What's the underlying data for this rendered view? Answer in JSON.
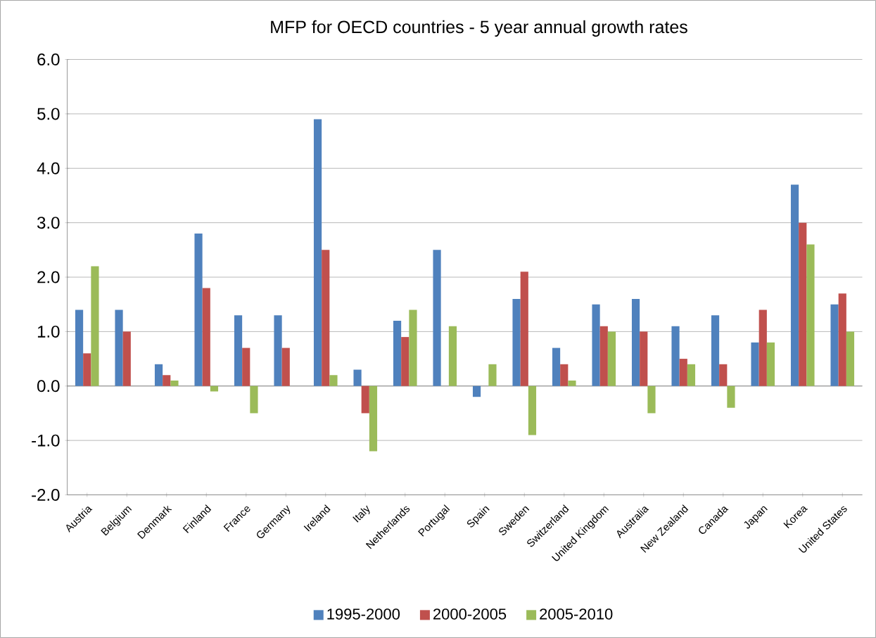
{
  "chart_data": {
    "type": "bar",
    "title": "MFP for OECD countries - 5 year annual growth rates",
    "categories": [
      "Austria",
      "Belgium",
      "Denmark",
      "Finland",
      "France",
      "Germany",
      "Ireland",
      "Italy",
      "Netherlands",
      "Portugal",
      "Spain",
      "Sweden",
      "Switzerland",
      "United Kingdom",
      "Australia",
      "New Zealand",
      "Canada",
      "Japan",
      "Korea",
      "United States"
    ],
    "series": [
      {
        "name": "1995-2000",
        "color": "#4f81bd",
        "values": [
          1.4,
          1.4,
          0.4,
          2.8,
          1.3,
          1.3,
          4.9,
          0.3,
          1.2,
          2.5,
          -0.2,
          1.6,
          0.7,
          1.5,
          1.6,
          1.1,
          1.3,
          0.8,
          3.7,
          1.5
        ]
      },
      {
        "name": "2000-2005",
        "color": "#c0504d",
        "values": [
          0.6,
          1.0,
          0.2,
          1.8,
          0.7,
          0.7,
          2.5,
          -0.5,
          0.9,
          null,
          null,
          2.1,
          0.4,
          1.1,
          1.0,
          0.5,
          0.4,
          1.4,
          3.0,
          1.7
        ]
      },
      {
        "name": "2005-2010",
        "color": "#9bbb59",
        "values": [
          2.2,
          null,
          0.1,
          -0.1,
          -0.5,
          null,
          0.2,
          -1.2,
          1.4,
          1.1,
          0.4,
          -0.9,
          0.1,
          1.0,
          -0.5,
          0.4,
          -0.4,
          0.8,
          2.6,
          1.0
        ]
      }
    ],
    "ylim": [
      -2.0,
      6.0
    ],
    "yticks": [
      {
        "value": -2,
        "label": "-2.0"
      },
      {
        "value": -1,
        "label": "-1.0"
      },
      {
        "value": 0,
        "label": "0.0"
      },
      {
        "value": 1,
        "label": "1.0"
      },
      {
        "value": 2,
        "label": "2.0"
      },
      {
        "value": 3,
        "label": "3.0"
      },
      {
        "value": 4,
        "label": "4.0"
      },
      {
        "value": 5,
        "label": "5.0"
      },
      {
        "value": 6,
        "label": "6.0"
      }
    ],
    "grid": "y",
    "legend": "bottom"
  }
}
